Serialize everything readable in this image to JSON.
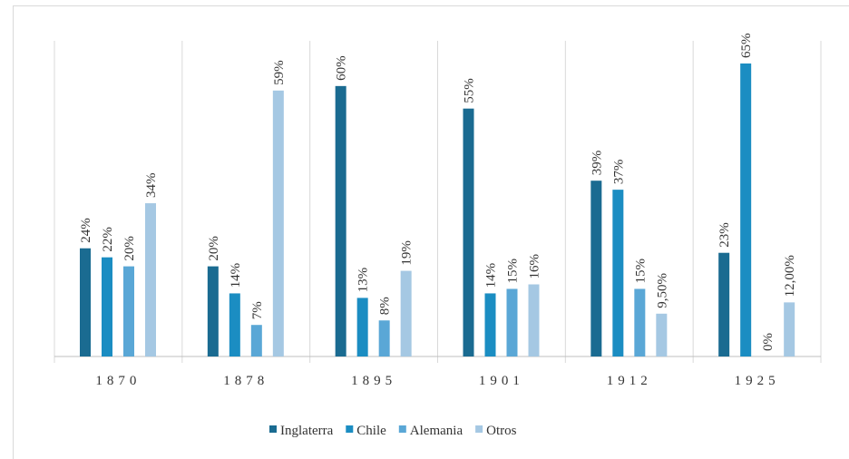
{
  "chart_data": {
    "type": "bar",
    "categories": [
      "1870",
      "1878",
      "1895",
      "1901",
      "1912",
      "1925"
    ],
    "series": [
      {
        "name": "Inglaterra",
        "color": "#1a6b91",
        "values": [
          24,
          20,
          60,
          55,
          39,
          23
        ],
        "value_labels": [
          "24%",
          "20%",
          "60%",
          "55%",
          "39%",
          "23%"
        ]
      },
      {
        "name": "Chile",
        "color": "#1b8dc2",
        "values": [
          22,
          14,
          13,
          14,
          37,
          65
        ],
        "value_labels": [
          "22%",
          "14%",
          "13%",
          "14%",
          "37%",
          "65%"
        ]
      },
      {
        "name": "Alemania",
        "color": "#5aa7d6",
        "values": [
          20,
          7,
          8,
          15,
          15,
          0
        ],
        "value_labels": [
          "20%",
          "7%",
          "8%",
          "15%",
          "15%",
          "0%"
        ]
      },
      {
        "name": "Otros",
        "color": "#a5c8e3",
        "values": [
          34,
          59,
          19,
          16,
          9.5,
          12
        ],
        "value_labels": [
          "34%",
          "59%",
          "19%",
          "16%",
          "9,50%",
          "12,00%"
        ]
      }
    ],
    "legend": "bottom"
  }
}
